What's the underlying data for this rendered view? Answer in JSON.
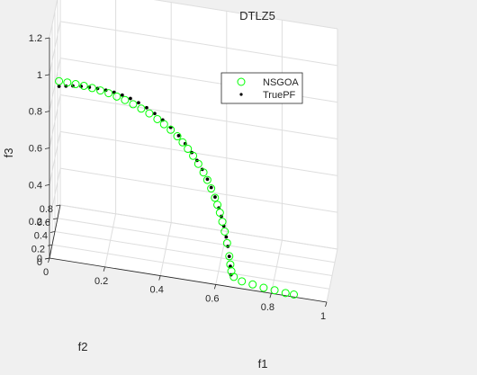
{
  "chart_data": {
    "type": "scatter",
    "projection": "3d",
    "title": "DTLZ5",
    "xlabel": "f1",
    "ylabel": "f2",
    "zlabel": "f3",
    "xlim": [
      0,
      1
    ],
    "ylim": [
      0,
      0.8
    ],
    "zlim": [
      0,
      1.2
    ],
    "xticks": [
      "0",
      "0.2",
      "0.4",
      "0.6",
      "0.8",
      "1"
    ],
    "yticks": [
      "0",
      "0.2",
      "0.4",
      "0.6",
      "0.8"
    ],
    "zticks": [
      "0",
      "0.2",
      "0.4",
      "0.6",
      "0.8",
      "1",
      "1.2"
    ],
    "grid": true,
    "legend_position": "top-right",
    "colors": {
      "nsgoa": "#00ff00",
      "truepf": "#000000",
      "axes_bg": "#ffffff",
      "figure_bg": "#f0f0f0"
    },
    "series": [
      {
        "name": "NSGOA",
        "marker": "circle-open",
        "points": [
          [
            0.0,
            0.705,
            0.709
          ],
          [
            0.03,
            0.705,
            0.709
          ],
          [
            0.06,
            0.703,
            0.708
          ],
          [
            0.09,
            0.7,
            0.707
          ],
          [
            0.12,
            0.695,
            0.704
          ],
          [
            0.15,
            0.689,
            0.7
          ],
          [
            0.18,
            0.682,
            0.695
          ],
          [
            0.21,
            0.674,
            0.687
          ],
          [
            0.24,
            0.663,
            0.679
          ],
          [
            0.27,
            0.65,
            0.668
          ],
          [
            0.3,
            0.634,
            0.657
          ],
          [
            0.33,
            0.618,
            0.644
          ],
          [
            0.36,
            0.599,
            0.627
          ],
          [
            0.385,
            0.58,
            0.612
          ],
          [
            0.41,
            0.56,
            0.595
          ],
          [
            0.435,
            0.537,
            0.574
          ],
          [
            0.455,
            0.517,
            0.553
          ],
          [
            0.475,
            0.495,
            0.53
          ],
          [
            0.495,
            0.473,
            0.505
          ],
          [
            0.515,
            0.448,
            0.475
          ],
          [
            0.535,
            0.421,
            0.443
          ],
          [
            0.55,
            0.398,
            0.414
          ],
          [
            0.565,
            0.374,
            0.38
          ],
          [
            0.58,
            0.345,
            0.343
          ],
          [
            0.59,
            0.323,
            0.315
          ],
          [
            0.6,
            0.302,
            0.282
          ],
          [
            0.61,
            0.278,
            0.244
          ],
          [
            0.62,
            0.25,
            0.203
          ],
          [
            0.63,
            0.218,
            0.154
          ],
          [
            0.64,
            0.177,
            0.1
          ],
          [
            0.645,
            0.15,
            0.066
          ],
          [
            0.65,
            0.124,
            0.04
          ],
          [
            0.66,
            0.1,
            0.02
          ],
          [
            0.69,
            0.08,
            0.01
          ],
          [
            0.73,
            0.06,
            0.01
          ],
          [
            0.77,
            0.05,
            0.005
          ],
          [
            0.81,
            0.04,
            0.005
          ],
          [
            0.85,
            0.03,
            0.003
          ],
          [
            0.88,
            0.03,
            0.002
          ]
        ]
      },
      {
        "name": "TruePF",
        "marker": "dot",
        "points": [
          [
            0.0,
            0.707,
            0.68
          ],
          [
            0.025,
            0.705,
            0.688
          ],
          [
            0.05,
            0.703,
            0.696
          ],
          [
            0.08,
            0.699,
            0.702
          ],
          [
            0.11,
            0.695,
            0.706
          ],
          [
            0.14,
            0.69,
            0.708
          ],
          [
            0.17,
            0.685,
            0.708
          ],
          [
            0.2,
            0.678,
            0.706
          ],
          [
            0.23,
            0.667,
            0.702
          ],
          [
            0.26,
            0.655,
            0.695
          ],
          [
            0.29,
            0.641,
            0.684
          ],
          [
            0.32,
            0.625,
            0.67
          ],
          [
            0.35,
            0.607,
            0.652
          ],
          [
            0.38,
            0.585,
            0.632
          ],
          [
            0.41,
            0.56,
            0.608
          ],
          [
            0.44,
            0.532,
            0.58
          ],
          [
            0.465,
            0.506,
            0.552
          ],
          [
            0.49,
            0.478,
            0.52
          ],
          [
            0.51,
            0.455,
            0.49
          ],
          [
            0.53,
            0.43,
            0.455
          ],
          [
            0.55,
            0.403,
            0.416
          ],
          [
            0.565,
            0.38,
            0.383
          ],
          [
            0.58,
            0.354,
            0.344
          ],
          [
            0.595,
            0.326,
            0.298
          ],
          [
            0.605,
            0.306,
            0.262
          ],
          [
            0.615,
            0.283,
            0.22
          ],
          [
            0.625,
            0.257,
            0.172
          ],
          [
            0.632,
            0.236,
            0.13
          ],
          [
            0.638,
            0.214,
            0.085
          ],
          [
            0.643,
            0.192,
            0.04
          ],
          [
            0.646,
            0.177,
            0.0
          ]
        ]
      }
    ]
  }
}
